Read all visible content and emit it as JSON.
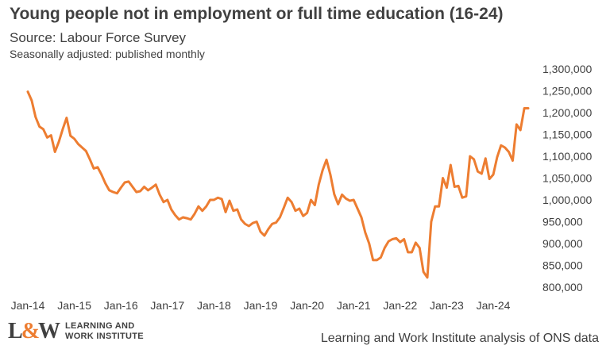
{
  "header": {
    "title": "Young people not in employment or full time education (16-24)",
    "subtitle": "Source: Labour Force Survey",
    "note": "Seasonally adjusted: published monthly"
  },
  "footer": {
    "logo_mark_left": "L",
    "logo_mark_amp": "&",
    "logo_mark_right": "W",
    "logo_line1": "LEARNING AND",
    "logo_line2": "WORK INSTITUTE",
    "credit": "Learning and Work Institute analysis of ONS data"
  },
  "colors": {
    "line": "#ed7d31",
    "text": "#404040"
  },
  "chart_data": {
    "type": "line",
    "title": "Young people not in employment or full time education (16-24)",
    "xlabel": "",
    "ylabel": "",
    "grid": false,
    "y_axis_position": "right",
    "ylim": [
      800000,
      1300000
    ],
    "yticks": [
      800000,
      850000,
      900000,
      950000,
      1000000,
      1050000,
      1100000,
      1150000,
      1200000,
      1250000,
      1300000
    ],
    "ytick_labels": [
      "800,000",
      "850,000",
      "900,000",
      "950,000",
      "1,000,000",
      "1,050,000",
      "1,100,000",
      "1,150,000",
      "1,200,000",
      "1,250,000",
      "1,300,000"
    ],
    "xtick_labels": [
      "Jan-14",
      "Jan-15",
      "Jan-16",
      "Jan-17",
      "Jan-18",
      "Jan-19",
      "Jan-20",
      "Jan-21",
      "Jan-22",
      "Jan-23",
      "Jan-24"
    ],
    "x_start": "Jan-14",
    "x_end": "Sep-24",
    "series": [
      {
        "values": [
          1248000,
          1228000,
          1190000,
          1168000,
          1162000,
          1143000,
          1148000,
          1110000,
          1133000,
          1162000,
          1188000,
          1147000,
          1140000,
          1128000,
          1120000,
          1112000,
          1093000,
          1072000,
          1075000,
          1058000,
          1038000,
          1022000,
          1018000,
          1015000,
          1028000,
          1040000,
          1042000,
          1030000,
          1018000,
          1020000,
          1030000,
          1022000,
          1028000,
          1035000,
          1012000,
          995000,
          1000000,
          978000,
          965000,
          955000,
          960000,
          958000,
          955000,
          968000,
          985000,
          975000,
          985000,
          1000000,
          1000000,
          1005000,
          1002000,
          972000,
          998000,
          975000,
          978000,
          955000,
          945000,
          940000,
          947000,
          950000,
          927000,
          918000,
          933000,
          945000,
          948000,
          960000,
          982000,
          1005000,
          995000,
          975000,
          980000,
          963000,
          970000,
          1000000,
          988000,
          1035000,
          1068000,
          1092000,
          1058000,
          1013000,
          990000,
          1012000,
          1003000,
          998000,
          1000000,
          980000,
          960000,
          925000,
          900000,
          862000,
          862000,
          868000,
          890000,
          905000,
          910000,
          912000,
          903000,
          910000,
          880000,
          880000,
          902000,
          890000,
          835000,
          822000,
          950000,
          985000,
          985000,
          1050000,
          1028000,
          1080000,
          1030000,
          1032000,
          1005000,
          1008000,
          1100000,
          1093000,
          1065000,
          1060000,
          1095000,
          1048000,
          1058000,
          1098000,
          1125000,
          1120000,
          1110000,
          1090000,
          1173000,
          1160000,
          1210000,
          1210000
        ]
      }
    ]
  }
}
